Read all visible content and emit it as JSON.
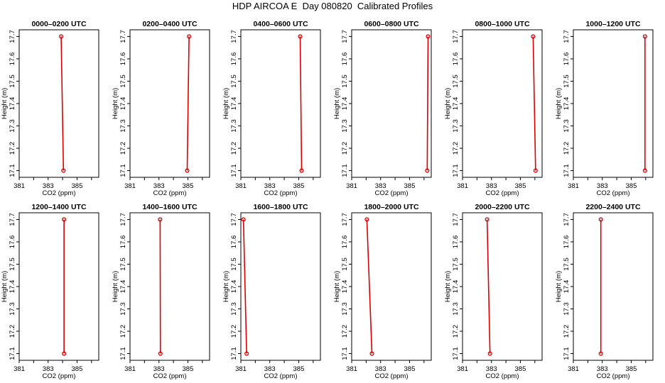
{
  "title": "HDP AIRCOA E  Day 080820  Calibrated Profiles",
  "colors": {
    "profile": "#dd0000",
    "axis": "#000000"
  },
  "chart_data": [
    {
      "type": "line",
      "title": "0000–0200 UTC",
      "xlabel": "CO2 (ppm)",
      "ylabel": "Height (m)",
      "xlim": [
        381,
        386.5
      ],
      "ylim": [
        17.07,
        17.73
      ],
      "xticks": [
        "381",
        "383",
        "385"
      ],
      "yticks": [
        "17.1",
        "17.2",
        "17.3",
        "17.4",
        "17.5",
        "17.6",
        "17.7"
      ],
      "series": [
        {
          "x": [
            384.06,
            383.9
          ],
          "y": [
            17.1,
            17.7
          ]
        }
      ]
    },
    {
      "type": "line",
      "title": "0200–0400 UTC",
      "xlabel": "CO2 (ppm)",
      "ylabel": "Height (m)",
      "xlim": [
        381,
        386.5
      ],
      "ylim": [
        17.07,
        17.73
      ],
      "xticks": [
        "381",
        "383",
        "385"
      ],
      "yticks": [
        "17.1",
        "17.2",
        "17.3",
        "17.4",
        "17.5",
        "17.6",
        "17.7"
      ],
      "series": [
        {
          "x": [
            384.95,
            385.08
          ],
          "y": [
            17.1,
            17.7
          ]
        }
      ]
    },
    {
      "type": "line",
      "title": "0400–0600 UTC",
      "xlabel": "CO2 (ppm)",
      "ylabel": "Height (m)",
      "xlim": [
        381,
        386.5
      ],
      "ylim": [
        17.07,
        17.73
      ],
      "xticks": [
        "381",
        "383",
        "385"
      ],
      "yticks": [
        "17.1",
        "17.2",
        "17.3",
        "17.4",
        "17.5",
        "17.6",
        "17.7"
      ],
      "series": [
        {
          "x": [
            385.2,
            385.1
          ],
          "y": [
            17.1,
            17.7
          ]
        }
      ]
    },
    {
      "type": "line",
      "title": "0600–0800 UTC",
      "xlabel": "CO2 (ppm)",
      "ylabel": "Height (m)",
      "xlim": [
        381,
        386.5
      ],
      "ylim": [
        17.07,
        17.73
      ],
      "xticks": [
        "381",
        "383",
        "385"
      ],
      "yticks": [
        "17.1",
        "17.2",
        "17.3",
        "17.4",
        "17.5",
        "17.6",
        "17.7"
      ],
      "series": [
        {
          "x": [
            386.22,
            386.28
          ],
          "y": [
            17.1,
            17.7
          ]
        }
      ]
    },
    {
      "type": "line",
      "title": "0800–1000 UTC",
      "xlabel": "CO2 (ppm)",
      "ylabel": "Height (m)",
      "xlim": [
        381,
        386.5
      ],
      "ylim": [
        17.07,
        17.73
      ],
      "xticks": [
        "381",
        "383",
        "385"
      ],
      "yticks": [
        "17.1",
        "17.2",
        "17.3",
        "17.4",
        "17.5",
        "17.6",
        "17.7"
      ],
      "series": [
        {
          "x": [
            386.05,
            385.88
          ],
          "y": [
            17.1,
            17.7
          ]
        }
      ]
    },
    {
      "type": "line",
      "title": "1000–1200 UTC",
      "xlabel": "CO2 (ppm)",
      "ylabel": "Height (m)",
      "xlim": [
        381,
        386.5
      ],
      "ylim": [
        17.07,
        17.73
      ],
      "xticks": [
        "381",
        "383",
        "385"
      ],
      "yticks": [
        "17.1",
        "17.2",
        "17.3",
        "17.4",
        "17.5",
        "17.6",
        "17.7"
      ],
      "series": [
        {
          "x": [
            385.95,
            385.95
          ],
          "y": [
            17.1,
            17.7
          ]
        }
      ]
    },
    {
      "type": "line",
      "title": "1200–1400 UTC",
      "xlabel": "CO2 (ppm)",
      "ylabel": "Height (m)",
      "xlim": [
        381,
        386.5
      ],
      "ylim": [
        17.07,
        17.73
      ],
      "xticks": [
        "381",
        "383",
        "385"
      ],
      "yticks": [
        "17.1",
        "17.2",
        "17.3",
        "17.4",
        "17.5",
        "17.6",
        "17.7"
      ],
      "series": [
        {
          "x": [
            384.1,
            384.1
          ],
          "y": [
            17.1,
            17.7
          ]
        }
      ]
    },
    {
      "type": "line",
      "title": "1400–1600 UTC",
      "xlabel": "CO2 (ppm)",
      "ylabel": "Height (m)",
      "xlim": [
        381,
        386.5
      ],
      "ylim": [
        17.07,
        17.73
      ],
      "xticks": [
        "381",
        "383",
        "385"
      ],
      "yticks": [
        "17.1",
        "17.2",
        "17.3",
        "17.4",
        "17.5",
        "17.6",
        "17.7"
      ],
      "series": [
        {
          "x": [
            383.1,
            383.08
          ],
          "y": [
            17.1,
            17.7
          ]
        }
      ]
    },
    {
      "type": "line",
      "title": "1600–1800 UTC",
      "xlabel": "CO2 (ppm)",
      "ylabel": "Height (m)",
      "xlim": [
        381,
        386.5
      ],
      "ylim": [
        17.07,
        17.73
      ],
      "xticks": [
        "381",
        "383",
        "385"
      ],
      "yticks": [
        "17.1",
        "17.2",
        "17.3",
        "17.4",
        "17.5",
        "17.6",
        "17.7"
      ],
      "series": [
        {
          "x": [
            381.4,
            381.18
          ],
          "y": [
            17.1,
            17.7
          ]
        }
      ]
    },
    {
      "type": "line",
      "title": "1800–2000 UTC",
      "xlabel": "CO2 (ppm)",
      "ylabel": "Height (m)",
      "xlim": [
        381,
        386.5
      ],
      "ylim": [
        17.07,
        17.73
      ],
      "xticks": [
        "381",
        "383",
        "385"
      ],
      "yticks": [
        "17.1",
        "17.2",
        "17.3",
        "17.4",
        "17.5",
        "17.6",
        "17.7"
      ],
      "series": [
        {
          "x": [
            382.4,
            382.05
          ],
          "y": [
            17.1,
            17.7
          ]
        }
      ]
    },
    {
      "type": "line",
      "title": "2000–2200 UTC",
      "xlabel": "CO2 (ppm)",
      "ylabel": "Height (m)",
      "xlim": [
        381,
        386.5
      ],
      "ylim": [
        17.07,
        17.73
      ],
      "xticks": [
        "381",
        "383",
        "385"
      ],
      "yticks": [
        "17.1",
        "17.2",
        "17.3",
        "17.4",
        "17.5",
        "17.6",
        "17.7"
      ],
      "series": [
        {
          "x": [
            382.9,
            382.7
          ],
          "y": [
            17.1,
            17.7
          ]
        }
      ]
    },
    {
      "type": "line",
      "title": "2200–2400 UTC",
      "xlabel": "CO2 (ppm)",
      "ylabel": "Height (m)",
      "xlim": [
        381,
        386.5
      ],
      "ylim": [
        17.07,
        17.73
      ],
      "xticks": [
        "381",
        "383",
        "385"
      ],
      "yticks": [
        "17.1",
        "17.2",
        "17.3",
        "17.4",
        "17.5",
        "17.6",
        "17.7"
      ],
      "series": [
        {
          "x": [
            382.9,
            382.9
          ],
          "y": [
            17.1,
            17.7
          ]
        }
      ]
    }
  ]
}
